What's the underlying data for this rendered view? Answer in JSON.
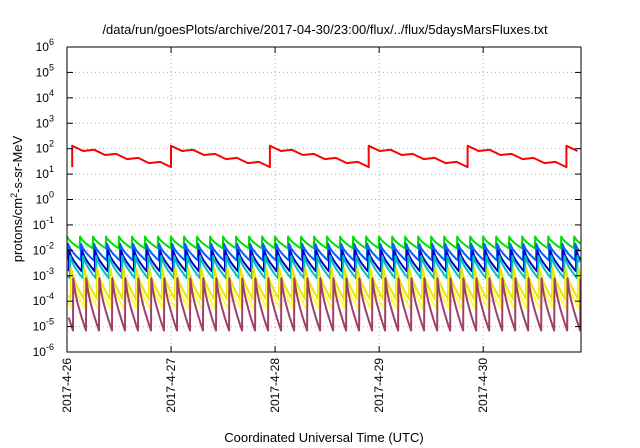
{
  "chart_data": {
    "type": "line",
    "title": "/data/run/goesPlots/archive/2017-04-30/23:00/flux/../flux/5daysMarsFluxes.txt",
    "xlabel": "Coordinated Universal Time (UTC)",
    "ylabel": "protons/cm2-s-sr-MeV",
    "ylabel_parts": {
      "base": "protons/cm",
      "sup": "2",
      "rest": "-s-sr-MeV"
    },
    "yscale": "log",
    "ylim_exp": [
      -6,
      6
    ],
    "y_ticks": [
      {
        "base": "10",
        "exp": "-6"
      },
      {
        "base": "10",
        "exp": "-5"
      },
      {
        "base": "10",
        "exp": "-4"
      },
      {
        "base": "10",
        "exp": "-3"
      },
      {
        "base": "10",
        "exp": "-2"
      },
      {
        "base": "10",
        "exp": "-1"
      },
      {
        "base": "10",
        "exp": "0"
      },
      {
        "base": "10",
        "exp": "1"
      },
      {
        "base": "10",
        "exp": "2"
      },
      {
        "base": "10",
        "exp": "3"
      },
      {
        "base": "10",
        "exp": "4"
      },
      {
        "base": "10",
        "exp": "5"
      },
      {
        "base": "10",
        "exp": "6"
      }
    ],
    "x_ticks": [
      "2017-4-26",
      "2017-4-27",
      "2017-4-28",
      "2017-4-29",
      "2017-4-30"
    ],
    "xlim_days": [
      0,
      4.94
    ],
    "grid": true,
    "series": [
      {
        "color": "#ff0000",
        "period_days": 0.95,
        "cycle_offset": 0.05,
        "peak": 130,
        "trough": 25,
        "teeth_per_cycle": 9
      },
      {
        "color": "#00e000",
        "period_days": 0.125,
        "cycle_offset": 0.0,
        "peak": 0.035,
        "trough": 0.012
      },
      {
        "color": "#0060ff",
        "period_days": 0.125,
        "cycle_offset": 0.01,
        "peak": 0.018,
        "trough": 0.004
      },
      {
        "color": "#0000c0",
        "period_days": 0.125,
        "cycle_offset": 0.02,
        "peak": 0.01,
        "trough": 0.0015
      },
      {
        "color": "#00c0c0",
        "period_days": 0.125,
        "cycle_offset": 0.03,
        "peak": 0.006,
        "trough": 0.0008
      },
      {
        "color": "#e6e600",
        "period_days": 0.125,
        "cycle_offset": 0.04,
        "peak": 0.002,
        "trough": 0.00012
      },
      {
        "color": "#ffff40",
        "period_days": 0.125,
        "cycle_offset": 0.05,
        "peak": 0.0009,
        "trough": 5e-05
      },
      {
        "color": "#a0406a",
        "period_days": 0.125,
        "cycle_offset": 0.06,
        "peak": 0.0008,
        "trough": 7e-06
      }
    ]
  }
}
